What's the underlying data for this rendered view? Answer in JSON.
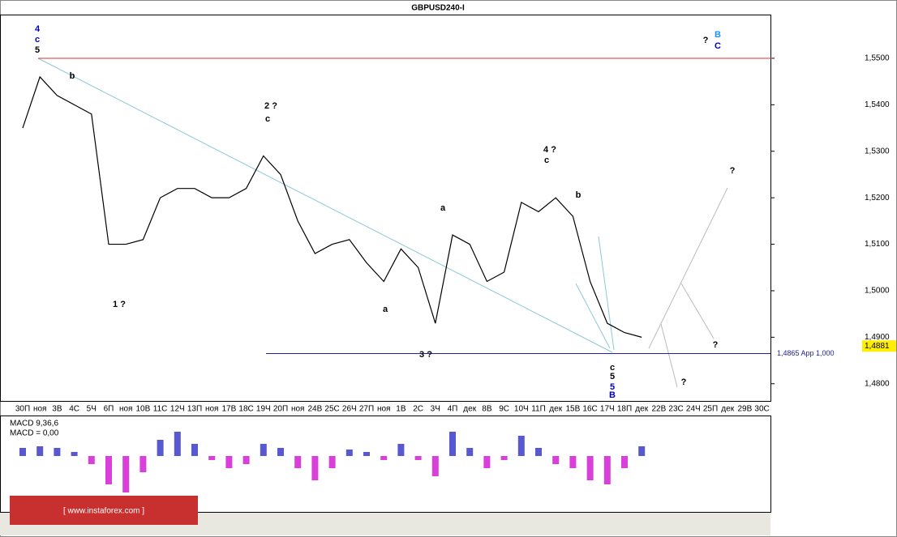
{
  "chart_data": [
    {
      "type": "line",
      "title": "GBPUSD240-I",
      "categories": [
        "30П",
        "ноя",
        "3В",
        "4C",
        "5Ч",
        "6П",
        "ноя",
        "10В",
        "11С",
        "12Ч",
        "13П",
        "ноя",
        "17В",
        "18С",
        "19Ч",
        "20П",
        "ноя",
        "24В",
        "25С",
        "26Ч",
        "27П",
        "ноя",
        "1В",
        "2С",
        "3Ч",
        "4П",
        "дек",
        "8В",
        "9С",
        "10Ч",
        "11П",
        "дек",
        "15В",
        "16С",
        "17Ч",
        "18П",
        "дек",
        "22В",
        "23С",
        "24Ч",
        "25П",
        "дек",
        "29В",
        "30С"
      ],
      "series": [
        {
          "name": "GBPUSD",
          "color": "#000000",
          "values": [
            1.535,
            1.546,
            1.542,
            1.54,
            1.538,
            1.51,
            1.51,
            1.511,
            1.52,
            1.522,
            1.522,
            1.52,
            1.52,
            1.522,
            1.529,
            1.525,
            1.515,
            1.508,
            1.51,
            1.511,
            1.506,
            1.502,
            1.509,
            1.505,
            1.493,
            1.512,
            1.51,
            1.502,
            1.504,
            1.519,
            1.517,
            1.52,
            1.516,
            1.502,
            1.493,
            1.491,
            1.49,
            null,
            null,
            null,
            null,
            null,
            null,
            null
          ]
        }
      ],
      "ylim": [
        1.4763,
        1.5594
      ],
      "yticks": [
        {
          "value": 1.48,
          "label": "1,4800"
        },
        {
          "value": 1.49,
          "label": "1,4900"
        },
        {
          "value": 1.5,
          "label": "1,5000"
        },
        {
          "value": 1.51,
          "label": "1,5100"
        },
        {
          "value": 1.52,
          "label": "1,5200"
        },
        {
          "value": 1.53,
          "label": "1,5300"
        },
        {
          "value": 1.54,
          "label": "1,5400"
        },
        {
          "value": 1.55,
          "label": "1,5500"
        }
      ],
      "resistance": {
        "value": 1.55,
        "color": "#e03030"
      },
      "support": {
        "value": 1.4865,
        "label": "1,4865 App 1,000",
        "color": "#2020a0"
      },
      "last_price": {
        "value": 1.4881,
        "label": "1,4881"
      },
      "annotations": [
        "4",
        "c",
        "5",
        "?",
        "B",
        "C",
        "2 ?",
        "c",
        "4 ?",
        "c",
        "3 ?",
        "1 ?",
        "B",
        "5",
        "5",
        "c",
        "?",
        "?",
        "?",
        "b",
        "b",
        "a",
        "a"
      ]
    },
    {
      "type": "histogram",
      "title": "MACD 9,36,6",
      "subtitle": "MACD = 0,00",
      "color": "#cc00cc",
      "up_color": "#2020c0",
      "values": [
        0.001,
        0.0012,
        0.001,
        0.0005,
        -0.001,
        -0.0035,
        -0.0045,
        -0.002,
        0.002,
        0.003,
        0.0015,
        -0.0005,
        -0.0015,
        -0.001,
        0.0015,
        0.001,
        -0.0015,
        -0.003,
        -0.0015,
        0.0008,
        0.0005,
        -0.0005,
        0.0015,
        -0.0005,
        -0.0025,
        0.003,
        0.001,
        -0.0015,
        -0.0005,
        0.0025,
        0.001,
        -0.001,
        -0.0015,
        -0.003,
        -0.0035,
        -0.0015,
        0.0012,
        null,
        null,
        null,
        null,
        null,
        null,
        null
      ]
    },
    {
      "type": "watermark",
      "title": "[ www.instaforex.com ]"
    }
  ]
}
